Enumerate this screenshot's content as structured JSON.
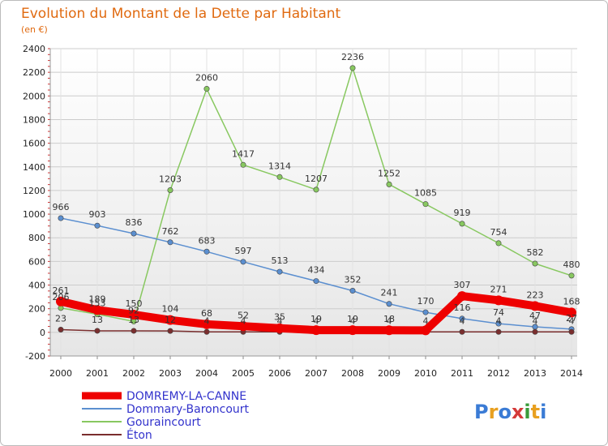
{
  "chart_data": {
    "type": "line",
    "title": "Evolution du Montant de la Dette par Habitant",
    "unit": "(en €)",
    "brand": "Proxiti",
    "categories": [
      "2000",
      "2001",
      "2002",
      "2003",
      "2004",
      "2005",
      "2006",
      "2007",
      "2008",
      "2009",
      "2010",
      "2011",
      "2012",
      "2013",
      "2014"
    ],
    "ylim": [
      -200,
      2400
    ],
    "yticks": [
      -200,
      0,
      200,
      400,
      600,
      800,
      1000,
      1200,
      1400,
      1600,
      1800,
      2000,
      2200,
      2400
    ],
    "series": [
      {
        "name": "DOMREMY-LA-CANNE",
        "color": "#ee0000",
        "values": [
          261,
          189,
          150,
          104,
          68,
          52,
          35,
          19,
          19,
          18,
          17,
          307,
          271,
          223,
          168
        ],
        "labels": [
          "261",
          "189",
          "150",
          "104",
          "68",
          "52",
          "35",
          "19",
          "19",
          "18",
          "",
          "307",
          "271",
          "223",
          "168"
        ]
      },
      {
        "name": "Dommary-Baroncourt",
        "color": "#5b8fd0",
        "values": [
          966,
          903,
          836,
          762,
          683,
          597,
          513,
          434,
          352,
          241,
          170,
          116,
          74,
          47,
          27
        ],
        "labels": [
          "966",
          "903",
          "836",
          "762",
          "683",
          "597",
          "513",
          "434",
          "352",
          "241",
          "170",
          "116",
          "74",
          "47",
          "27"
        ]
      },
      {
        "name": "Gouraincourt",
        "color": "#88c860",
        "values": [
          206,
          153,
          92,
          1203,
          2060,
          1417,
          1314,
          1207,
          2236,
          1252,
          1085,
          919,
          754,
          582,
          480
        ],
        "labels": [
          "206",
          "153",
          "92",
          "1203",
          "2060",
          "1417",
          "1314",
          "1207",
          "2236",
          "1252",
          "1085",
          "919",
          "754",
          "582",
          "480"
        ]
      },
      {
        "name": "Éton",
        "color": "#7a2e2e",
        "values": [
          23,
          13,
          13,
          12,
          4,
          4,
          4,
          4,
          4,
          4,
          4,
          4,
          4,
          4,
          4
        ],
        "labels": [
          "23",
          "13",
          "13",
          "12",
          "4",
          "4",
          "4",
          "4",
          "4",
          "4",
          "4",
          "4",
          "4",
          "4",
          "4"
        ]
      }
    ]
  }
}
